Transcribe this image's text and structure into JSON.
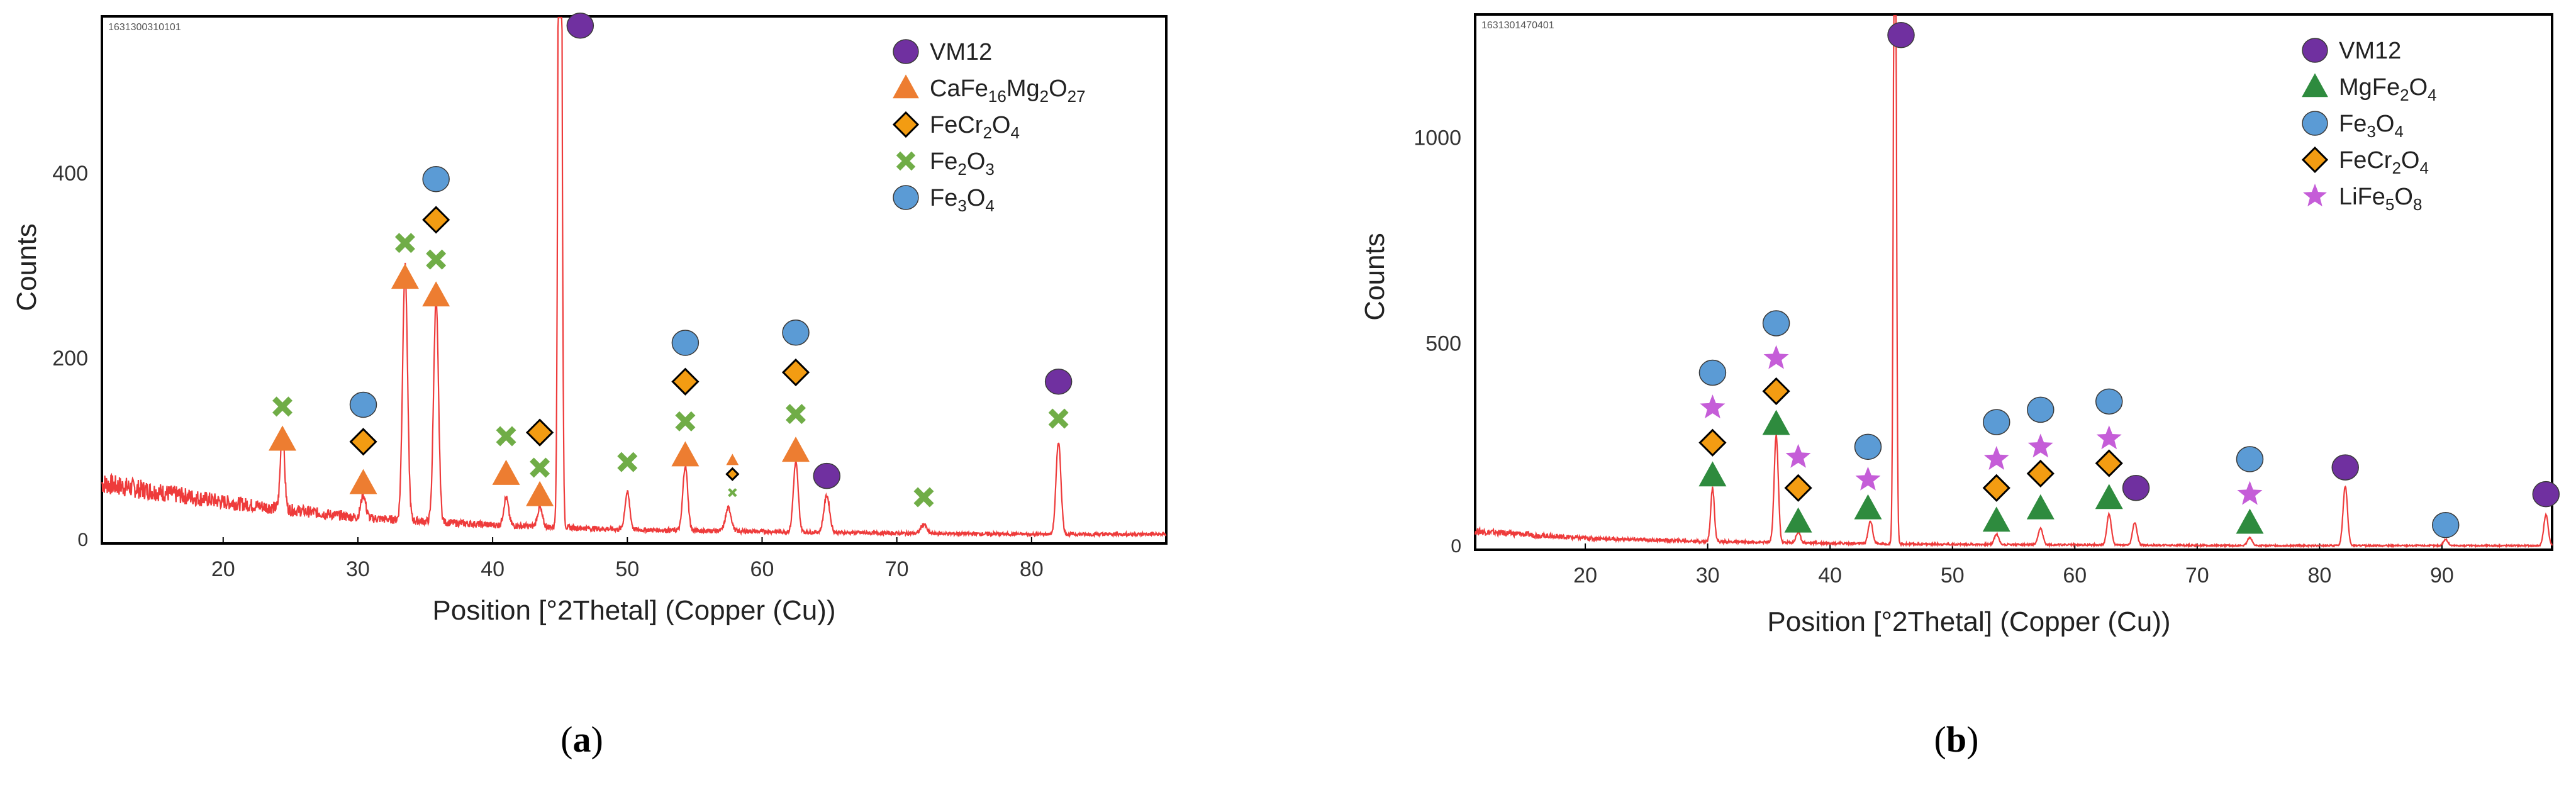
{
  "chart_data": [
    {
      "panel": "a",
      "type": "line",
      "sample_id": "1631300310101",
      "xlabel": "Position [°2Thetal] (Copper (Cu))",
      "ylabel": "Counts",
      "xlim": [
        11,
        90
      ],
      "ylim": [
        0,
        570
      ],
      "xticks": [
        20,
        30,
        40,
        50,
        60,
        70,
        80
      ],
      "yticks": [
        0,
        200,
        400
      ],
      "color": "#ee3b3b",
      "baseline": [
        [
          11,
          65
        ],
        [
          20,
          45
        ],
        [
          30,
          28
        ],
        [
          40,
          20
        ],
        [
          50,
          15
        ],
        [
          60,
          13
        ],
        [
          70,
          11
        ],
        [
          80,
          10
        ],
        [
          90,
          10
        ]
      ],
      "peaks": [
        [
          24.4,
          85,
          0.25
        ],
        [
          30.4,
          25,
          0.3
        ],
        [
          33.5,
          275,
          0.3
        ],
        [
          35.8,
          240,
          0.3
        ],
        [
          41.0,
          30,
          0.3
        ],
        [
          43.5,
          20,
          0.3
        ],
        [
          45.0,
          1200,
          0.2
        ],
        [
          50.0,
          40,
          0.3
        ],
        [
          54.3,
          70,
          0.3
        ],
        [
          57.5,
          25,
          0.35
        ],
        [
          62.5,
          75,
          0.3
        ],
        [
          64.8,
          40,
          0.35
        ],
        [
          72.0,
          10,
          0.35
        ],
        [
          82.0,
          100,
          0.3
        ]
      ],
      "legend": [
        {
          "marker": "circle",
          "color": "#7030a0",
          "label": "VM12"
        },
        {
          "marker": "triangle",
          "color": "#ed7d31",
          "label": "CaFe16Mg2O27",
          "parts": [
            [
              "CaFe",
              ""
            ],
            [
              "16",
              "sub"
            ],
            [
              "Mg",
              ""
            ],
            [
              "2",
              "sub"
            ],
            [
              "O",
              ""
            ],
            [
              "27",
              "sub"
            ]
          ]
        },
        {
          "marker": "diamond",
          "color": "#f39c12",
          "label": "FeCr2O4",
          "parts": [
            [
              "FeCr",
              ""
            ],
            [
              "2",
              "sub"
            ],
            [
              "O",
              ""
            ],
            [
              "4",
              "sub"
            ]
          ]
        },
        {
          "marker": "cross",
          "color": "#70ad47",
          "label": "Fe2O3",
          "parts": [
            [
              "Fe",
              ""
            ],
            [
              "2",
              "sub"
            ],
            [
              "O",
              ""
            ],
            [
              "3",
              "sub"
            ]
          ]
        },
        {
          "marker": "circle",
          "color": "#5b9bd5",
          "label": "Fe3O4",
          "parts": [
            [
              "Fe",
              ""
            ],
            [
              "3",
              "sub"
            ],
            [
              "O",
              ""
            ],
            [
              "4",
              "sub"
            ]
          ]
        }
      ],
      "markers": [
        {
          "phase": "VM12",
          "shape": "circle",
          "color": "#7030a0",
          "points": [
            [
              46.5,
              560
            ],
            [
              64.8,
              73
            ],
            [
              82.0,
              175
            ]
          ]
        },
        {
          "phase": "CaFe16Mg2O27",
          "shape": "triangle",
          "color": "#ed7d31",
          "points": [
            [
              24.4,
              112
            ],
            [
              30.4,
              65
            ],
            [
              33.5,
              287
            ],
            [
              35.8,
              268
            ],
            [
              41.0,
              75
            ],
            [
              43.5,
              52
            ],
            [
              54.3,
              95
            ],
            [
              62.5,
              100
            ],
            [
              57.8,
              90,
              "small"
            ]
          ]
        },
        {
          "phase": "FeCr2O4",
          "shape": "diamond",
          "color": "#f39c12",
          "points": [
            [
              30.4,
              110
            ],
            [
              35.8,
              350
            ],
            [
              43.5,
              120
            ],
            [
              54.3,
              175
            ],
            [
              62.5,
              185
            ],
            [
              57.8,
              75,
              "small"
            ]
          ]
        },
        {
          "phase": "Fe2O3",
          "shape": "cross",
          "color": "#70ad47",
          "points": [
            [
              24.4,
              148
            ],
            [
              33.5,
              325
            ],
            [
              35.8,
              307
            ],
            [
              41.0,
              116
            ],
            [
              43.5,
              82
            ],
            [
              50.0,
              88
            ],
            [
              54.3,
              132
            ],
            [
              62.5,
              140
            ],
            [
              72.0,
              50
            ],
            [
              82.0,
              135
            ],
            [
              57.8,
              55,
              "small"
            ]
          ]
        },
        {
          "phase": "Fe3O4",
          "shape": "circle",
          "color": "#5b9bd5",
          "points": [
            [
              30.4,
              150
            ],
            [
              35.8,
              394
            ],
            [
              54.3,
              217
            ],
            [
              62.5,
              228
            ]
          ]
        }
      ]
    },
    {
      "panel": "b",
      "type": "line",
      "sample_id": "1631301470401",
      "xlabel": "Position [°2Thetal] (Copper (Cu))",
      "ylabel": "Counts",
      "xlim": [
        11,
        99
      ],
      "ylim": [
        0,
        1300
      ],
      "xticks": [
        20,
        30,
        40,
        50,
        60,
        70,
        80,
        90
      ],
      "yticks": [
        0,
        500,
        1000
      ],
      "color": "#ee3b3b",
      "baseline": [
        [
          11,
          45
        ],
        [
          20,
          28
        ],
        [
          30,
          20
        ],
        [
          45,
          14
        ],
        [
          60,
          12
        ],
        [
          75,
          10
        ],
        [
          99,
          10
        ]
      ],
      "peaks": [
        [
          30.4,
          130,
          0.25
        ],
        [
          35.6,
          260,
          0.28
        ],
        [
          37.4,
          25,
          0.3
        ],
        [
          43.3,
          55,
          0.3
        ],
        [
          45.3,
          2000,
          0.18
        ],
        [
          53.6,
          25,
          0.3
        ],
        [
          57.2,
          40,
          0.3
        ],
        [
          62.8,
          75,
          0.3
        ],
        [
          64.9,
          55,
          0.3
        ],
        [
          74.3,
          20,
          0.3
        ],
        [
          82.1,
          145,
          0.3
        ],
        [
          90.3,
          15,
          0.3
        ],
        [
          98.5,
          75,
          0.3
        ]
      ],
      "legend": [
        {
          "marker": "circle",
          "color": "#7030a0",
          "label": "VM12"
        },
        {
          "marker": "triangle",
          "color": "#2e8b3e",
          "label": "MgFe2O4",
          "parts": [
            [
              "MgFe",
              ""
            ],
            [
              "2",
              "sub"
            ],
            [
              "O",
              ""
            ],
            [
              "4",
              "sub"
            ]
          ]
        },
        {
          "marker": "circle",
          "color": "#5b9bd5",
          "label": "Fe3O4",
          "parts": [
            [
              "Fe",
              ""
            ],
            [
              "3",
              "sub"
            ],
            [
              "O",
              ""
            ],
            [
              "4",
              "sub"
            ]
          ]
        },
        {
          "marker": "diamond",
          "color": "#f39c12",
          "label": "FeCr2O4",
          "parts": [
            [
              "FeCr",
              ""
            ],
            [
              "2",
              "sub"
            ],
            [
              "O",
              ""
            ],
            [
              "4",
              "sub"
            ]
          ]
        },
        {
          "marker": "star",
          "color": "#c55dd8",
          "label": "LiFe5O8",
          "parts": [
            [
              "LiFe",
              ""
            ],
            [
              "5",
              "sub"
            ],
            [
              "O",
              ""
            ],
            [
              "8",
              "sub"
            ]
          ]
        }
      ],
      "markers": [
        {
          "phase": "VM12",
          "shape": "circle",
          "color": "#7030a0",
          "points": [
            [
              45.8,
              1250
            ],
            [
              65.0,
              150
            ],
            [
              82.1,
              200
            ],
            [
              98.5,
              135
            ]
          ]
        },
        {
          "phase": "MgFe2O4",
          "shape": "triangle",
          "color": "#2e8b3e",
          "points": [
            [
              30.4,
              180
            ],
            [
              35.6,
              305
            ],
            [
              37.4,
              68
            ],
            [
              43.1,
              100
            ],
            [
              53.6,
              70
            ],
            [
              57.2,
              100
            ],
            [
              62.8,
              125
            ],
            [
              74.3,
              65
            ]
          ]
        },
        {
          "phase": "Fe3O4",
          "shape": "circle",
          "color": "#5b9bd5",
          "points": [
            [
              30.4,
              430
            ],
            [
              35.6,
              550
            ],
            [
              43.1,
              250
            ],
            [
              53.6,
              310
            ],
            [
              57.2,
              340
            ],
            [
              62.8,
              360
            ],
            [
              74.3,
              220
            ],
            [
              90.3,
              60
            ]
          ]
        },
        {
          "phase": "FeCr2O4",
          "shape": "diamond",
          "color": "#f39c12",
          "points": [
            [
              30.4,
              260
            ],
            [
              35.6,
              385
            ],
            [
              37.4,
              150
            ],
            [
              53.6,
              150
            ],
            [
              57.2,
              185
            ],
            [
              62.8,
              210
            ]
          ]
        },
        {
          "phase": "LiFe5O8",
          "shape": "star",
          "color": "#c55dd8",
          "points": [
            [
              30.4,
              345
            ],
            [
              35.6,
              465
            ],
            [
              37.4,
              225
            ],
            [
              43.1,
              170
            ],
            [
              53.6,
              220
            ],
            [
              57.2,
              250
            ],
            [
              62.8,
              270
            ],
            [
              74.3,
              135
            ]
          ]
        }
      ]
    }
  ],
  "captions": {
    "a": "a",
    "b": "b"
  }
}
